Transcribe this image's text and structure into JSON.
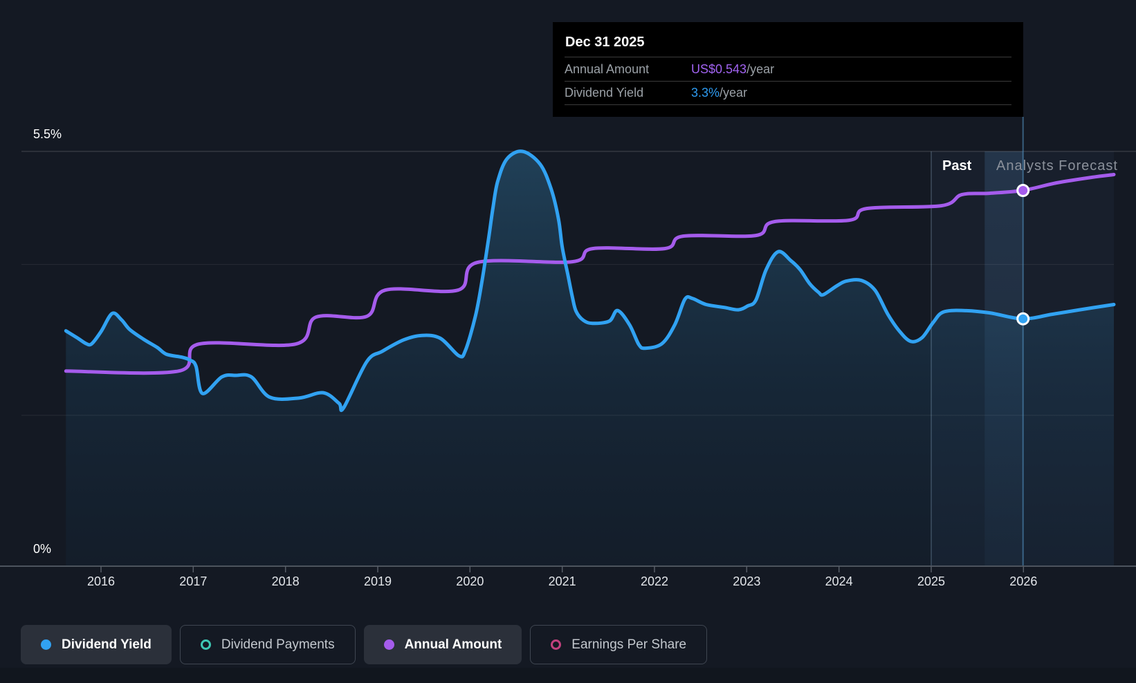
{
  "colors": {
    "background": "#141923",
    "tooltip_bg": "#000000",
    "accent_blue": "#31a2f2",
    "accent_purple": "#a55cec",
    "accent_teal": "#3ec7b4",
    "accent_pink": "#c2417e",
    "text_primary": "#ffffff",
    "text_secondary": "#9aa0a6",
    "gridline": "rgba(255,255,255,0.08)",
    "axis_line": "#4d545e"
  },
  "tooltip": {
    "title": "Dec 31 2025",
    "rows": [
      {
        "label": "Annual Amount",
        "value": "US$0.543",
        "suffix": "/year",
        "color": "#a163f1"
      },
      {
        "label": "Dividend Yield",
        "value": "3.3%",
        "suffix": "/year",
        "color": "#2e9bf0"
      }
    ]
  },
  "legend": {
    "items": [
      {
        "label": "Dividend Yield",
        "marker": "dot",
        "color": "#31a2f2",
        "active": true
      },
      {
        "label": "Dividend Payments",
        "marker": "ring",
        "color": "#3ec7b4",
        "active": false
      },
      {
        "label": "Annual Amount",
        "marker": "dot",
        "color": "#a55cec",
        "active": true
      },
      {
        "label": "Earnings Per Share",
        "marker": "ring",
        "color": "#c2417e",
        "active": false
      }
    ]
  },
  "chart_data": {
    "type": "line",
    "title": "Dividend history and forecast",
    "x_axis": {
      "ticks": [
        2016,
        2017,
        2018,
        2019,
        2020,
        2021,
        2022,
        2023,
        2024,
        2025,
        2026
      ],
      "domain": [
        2015.62,
        2026.98
      ]
    },
    "y_axis": {
      "label_top": "5.5%",
      "label_bottom": "0%",
      "domain": [
        0,
        5.5
      ],
      "gridlines": [
        2,
        4
      ],
      "top_line": 5.5,
      "grid_on": true
    },
    "amount_axis": {
      "domain": [
        0,
        0.5995
      ],
      "unit": "US$/year"
    },
    "annotations": {
      "past_label": "Past",
      "forecast_label": "Analysts Forecast"
    },
    "past_divider_year": 2025.0,
    "selected_year": 2025.995,
    "hover_band_years": [
      2025.58,
      2025.995
    ],
    "legend_position": "bottom",
    "series": [
      {
        "name": "Dividend Yield",
        "axis": "pct",
        "color": "#31a2f2",
        "area": true,
        "points": [
          [
            2015.62,
            3.12
          ],
          [
            2015.74,
            3.03
          ],
          [
            2015.84,
            2.95
          ],
          [
            2015.9,
            2.95
          ],
          [
            2016.0,
            3.11
          ],
          [
            2016.12,
            3.35
          ],
          [
            2016.22,
            3.27
          ],
          [
            2016.31,
            3.14
          ],
          [
            2016.46,
            3.01
          ],
          [
            2016.61,
            2.9
          ],
          [
            2016.71,
            2.81
          ],
          [
            2016.88,
            2.77
          ],
          [
            2016.97,
            2.73
          ],
          [
            2017.03,
            2.65
          ],
          [
            2017.1,
            2.29
          ],
          [
            2017.31,
            2.51
          ],
          [
            2017.46,
            2.53
          ],
          [
            2017.63,
            2.51
          ],
          [
            2017.83,
            2.24
          ],
          [
            2018.15,
            2.23
          ],
          [
            2018.41,
            2.3
          ],
          [
            2018.58,
            2.16
          ],
          [
            2018.63,
            2.1
          ],
          [
            2018.88,
            2.71
          ],
          [
            2019.05,
            2.85
          ],
          [
            2019.28,
            3.0
          ],
          [
            2019.48,
            3.06
          ],
          [
            2019.68,
            3.02
          ],
          [
            2019.88,
            2.79
          ],
          [
            2019.95,
            2.86
          ],
          [
            2020.06,
            3.32
          ],
          [
            2020.13,
            3.78
          ],
          [
            2020.2,
            4.33
          ],
          [
            2020.25,
            4.76
          ],
          [
            2020.3,
            5.1
          ],
          [
            2020.4,
            5.4
          ],
          [
            2020.57,
            5.5
          ],
          [
            2020.76,
            5.33
          ],
          [
            2020.88,
            5.0
          ],
          [
            2020.96,
            4.6
          ],
          [
            2021.0,
            4.23
          ],
          [
            2021.06,
            3.87
          ],
          [
            2021.11,
            3.57
          ],
          [
            2021.15,
            3.38
          ],
          [
            2021.23,
            3.26
          ],
          [
            2021.33,
            3.22
          ],
          [
            2021.51,
            3.25
          ],
          [
            2021.6,
            3.39
          ],
          [
            2021.73,
            3.2
          ],
          [
            2021.83,
            2.94
          ],
          [
            2021.9,
            2.89
          ],
          [
            2022.08,
            2.95
          ],
          [
            2022.22,
            3.2
          ],
          [
            2022.33,
            3.54
          ],
          [
            2022.41,
            3.55
          ],
          [
            2022.56,
            3.47
          ],
          [
            2022.76,
            3.43
          ],
          [
            2022.91,
            3.4
          ],
          [
            2023.01,
            3.45
          ],
          [
            2023.1,
            3.53
          ],
          [
            2023.21,
            3.93
          ],
          [
            2023.34,
            4.17
          ],
          [
            2023.48,
            4.05
          ],
          [
            2023.58,
            3.93
          ],
          [
            2023.68,
            3.75
          ],
          [
            2023.78,
            3.63
          ],
          [
            2023.83,
            3.6
          ],
          [
            2023.98,
            3.72
          ],
          [
            2024.08,
            3.78
          ],
          [
            2024.24,
            3.79
          ],
          [
            2024.39,
            3.66
          ],
          [
            2024.53,
            3.34
          ],
          [
            2024.66,
            3.11
          ],
          [
            2024.78,
            2.98
          ],
          [
            2024.9,
            3.03
          ],
          [
            2025.02,
            3.23
          ],
          [
            2025.13,
            3.37
          ],
          [
            2025.35,
            3.39
          ],
          [
            2025.63,
            3.36
          ],
          [
            2025.99,
            3.28
          ],
          [
            2026.31,
            3.34
          ],
          [
            2026.61,
            3.4
          ],
          [
            2026.98,
            3.47
          ]
        ]
      },
      {
        "name": "Annual Amount",
        "axis": "usd",
        "color": "#a55cec",
        "area": false,
        "points": [
          [
            2015.62,
            0.282
          ],
          [
            2016.84,
            0.282
          ],
          [
            2017.06,
            0.321
          ],
          [
            2018.11,
            0.321
          ],
          [
            2018.33,
            0.36
          ],
          [
            2018.88,
            0.361
          ],
          [
            2019.08,
            0.399
          ],
          [
            2019.87,
            0.399
          ],
          [
            2020.08,
            0.439
          ],
          [
            2021.11,
            0.44
          ],
          [
            2021.33,
            0.459
          ],
          [
            2022.11,
            0.459
          ],
          [
            2022.31,
            0.477
          ],
          [
            2023.1,
            0.478
          ],
          [
            2023.3,
            0.498
          ],
          [
            2024.11,
            0.5
          ],
          [
            2024.3,
            0.517
          ],
          [
            2025.11,
            0.521
          ],
          [
            2025.33,
            0.537
          ],
          [
            2025.63,
            0.539
          ],
          [
            2025.99,
            0.543
          ],
          [
            2026.36,
            0.554
          ],
          [
            2026.74,
            0.562
          ],
          [
            2026.98,
            0.566
          ]
        ]
      }
    ],
    "markers": [
      {
        "series": "Annual Amount",
        "year": 2025.995,
        "value": 0.543
      },
      {
        "series": "Dividend Yield",
        "year": 2025.995,
        "value": 3.28
      }
    ]
  }
}
